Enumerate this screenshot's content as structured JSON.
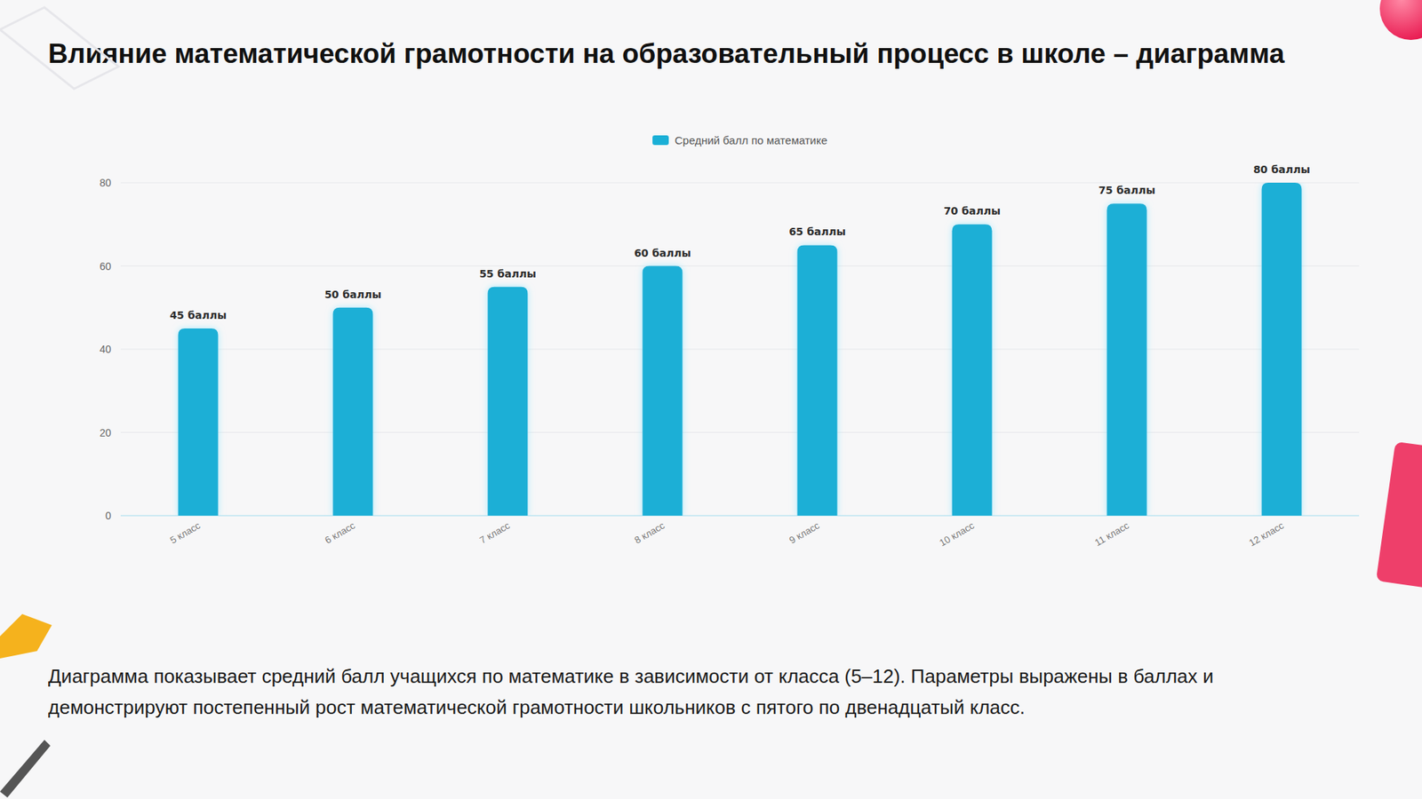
{
  "chart_data": {
    "type": "bar",
    "title": "Влияние математической грамотности на образовательный процесс в школе – диаграмма",
    "annotations": [
      "Диаграмма показывает средний балл учащихся по математике в зависимости от класса (5–12). Параметры выражены в баллах и демонстрируют постепенный рост математической грамотности школьников с пятого по двенадцатый класс."
    ],
    "categories": [
      "5 класс",
      "6 класс",
      "7 класс",
      "8 класс",
      "9 класс",
      "10 класс",
      "11 класс",
      "12 класс"
    ],
    "series": [
      {
        "name": "Средний балл по математике",
        "color": "#1aafd6",
        "values": [
          45,
          50,
          55,
          60,
          65,
          70,
          75,
          80
        ],
        "value_labels": [
          "45 баллы",
          "50 баллы",
          "55 баллы",
          "60 баллы",
          "65 баллы",
          "70 баллы",
          "75 баллы",
          "80 баллы"
        ]
      }
    ],
    "ylim": [
      0,
      80
    ],
    "yticks": [
      0,
      20,
      40,
      60,
      80
    ],
    "grid": true,
    "legend": "top",
    "data_labels": true
  }
}
